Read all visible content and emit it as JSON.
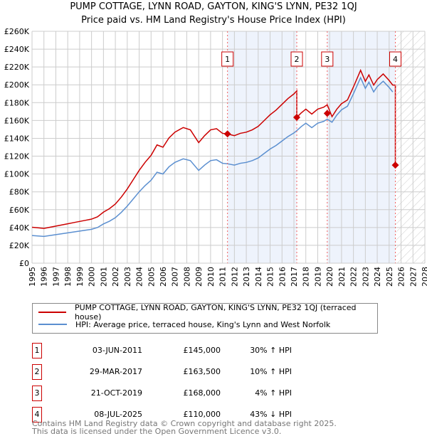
{
  "chart_data": {
    "type": "line",
    "title": "PUMP COTTAGE, LYNN ROAD, GAYTON, KING'S LYNN, PE32 1QJ",
    "subtitle": "Price paid vs. HM Land Registry's House Price Index (HPI)",
    "xlim": [
      1995,
      2028
    ],
    "ylim": [
      0,
      260000
    ],
    "x_ticks": [
      "1995",
      "1996",
      "1997",
      "1998",
      "1999",
      "2000",
      "2001",
      "2002",
      "2003",
      "2004",
      "2005",
      "2006",
      "2007",
      "2008",
      "2009",
      "2010",
      "2011",
      "2012",
      "2013",
      "2014",
      "2015",
      "2016",
      "2017",
      "2018",
      "2019",
      "2020",
      "2021",
      "2022",
      "2023",
      "2024",
      "2025",
      "2026",
      "2027",
      "2028"
    ],
    "y_ticks": [
      "£0",
      "£20K",
      "£40K",
      "£60K",
      "£80K",
      "£100K",
      "£120K",
      "£140K",
      "£160K",
      "£180K",
      "£200K",
      "£220K",
      "£240K",
      "£260K"
    ],
    "grid": true,
    "series": [
      {
        "name": "PUMP COTTAGE, LYNN ROAD, GAYTON, KING'S LYNN, PE32 1QJ (terraced house)",
        "color": "#cc0000"
      },
      {
        "name": "HPI: Average price, terraced house, King's Lynn and West Norfolk",
        "color": "#5b8fd0",
        "x": [
          1995,
          1995.5,
          1996,
          1996.5,
          1997,
          1997.5,
          1998,
          1998.5,
          1999,
          1999.5,
          2000,
          2000.5,
          2001,
          2001.5,
          2002,
          2002.5,
          2003,
          2003.5,
          2004,
          2004.5,
          2005,
          2005.5,
          2006,
          2006.5,
          2007,
          2007.7,
          2008.3,
          2009,
          2009.5,
          2010,
          2010.5,
          2011,
          2011.4,
          2012,
          2012.5,
          2013,
          2013.5,
          2014,
          2014.5,
          2015,
          2015.5,
          2016,
          2016.5,
          2017,
          2017.24,
          2017.6,
          2018,
          2018.5,
          2019,
          2019.5,
          2019.8,
          2020.2,
          2020.6,
          2021,
          2021.5,
          2022,
          2022.6,
          2023,
          2023.3,
          2023.7,
          2024,
          2024.5,
          2025,
          2025.3
        ],
        "y": [
          31000,
          30500,
          30000,
          31000,
          32000,
          33000,
          34000,
          35000,
          36000,
          37000,
          38000,
          40000,
          44000,
          47000,
          51000,
          57000,
          64000,
          72000,
          80000,
          87000,
          93000,
          102000,
          100000,
          108000,
          113000,
          117000,
          115000,
          104000,
          110000,
          115000,
          116000,
          112000,
          111500,
          110000,
          112000,
          113000,
          115000,
          118000,
          123000,
          128000,
          132000,
          137000,
          142000,
          146000,
          148600,
          153000,
          157000,
          152000,
          157000,
          159000,
          161500,
          158000,
          166000,
          172000,
          176000,
          190000,
          208000,
          196000,
          203000,
          192000,
          198000,
          204000,
          197000,
          192000
        ]
      }
    ],
    "sales": [
      {
        "n": "1",
        "t": 2011.42,
        "price": 145000,
        "date": "03-JUN-2011",
        "price_label": "£145,000",
        "hpi": "30% ↑ HPI"
      },
      {
        "n": "2",
        "t": 2017.24,
        "price": 163500,
        "date": "29-MAR-2017",
        "price_label": "£163,500",
        "hpi": "10% ↑ HPI"
      },
      {
        "n": "3",
        "t": 2019.8,
        "price": 168000,
        "date": "21-OCT-2019",
        "price_label": "£168,000",
        "hpi": "4% ↑ HPI"
      },
      {
        "n": "4",
        "t": 2025.52,
        "price": 110000,
        "date": "08-JUL-2025",
        "price_label": "£110,000",
        "hpi": "43% ↓ HPI"
      }
    ]
  },
  "footer": {
    "line1": "Contains HM Land Registry data © Crown copyright and database right 2025.",
    "line2": "This data is licensed under the Open Government Licence v3.0."
  }
}
